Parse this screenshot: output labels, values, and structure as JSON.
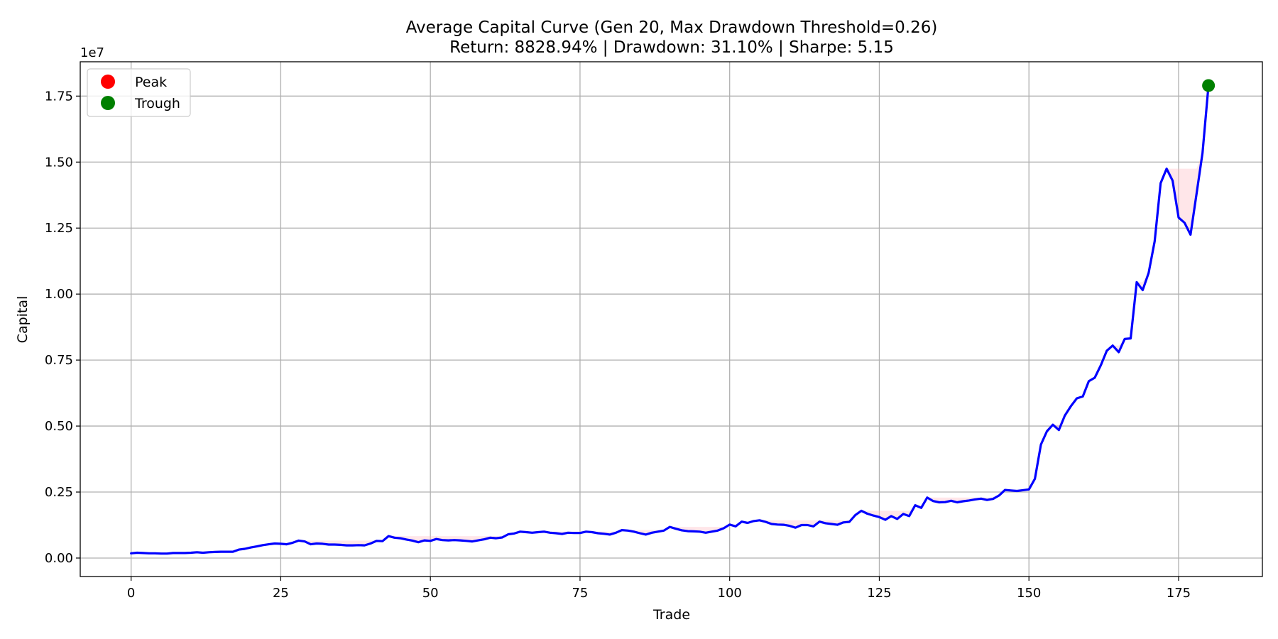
{
  "chart_data": {
    "type": "line",
    "title": "Average Capital Curve (Gen 20, Max Drawdown Threshold=0.26)",
    "subtitle": "Return: 8828.94% | Drawdown: 31.10% | Sharpe: 5.15",
    "xlabel": "Trade",
    "ylabel": "Capital",
    "y_offset_label": "1e7",
    "xlim": [
      -8.5,
      189
    ],
    "ylim": [
      -0.07,
      1.88
    ],
    "y_scale": 10000000,
    "x_ticks": [
      0,
      25,
      50,
      75,
      100,
      125,
      150,
      175
    ],
    "y_ticks": [
      0.0,
      0.25,
      0.5,
      0.75,
      1.0,
      1.25,
      1.5,
      1.75
    ],
    "y_tick_labels": [
      "0.00",
      "0.25",
      "0.50",
      "0.75",
      "1.00",
      "1.25",
      "1.50",
      "1.75"
    ],
    "grid": true,
    "legend_position": "upper-left",
    "series": [
      {
        "name": "",
        "color": "#0000ff",
        "x": [
          0,
          1,
          2,
          3,
          4,
          5,
          6,
          7,
          8,
          9,
          10,
          11,
          12,
          13,
          14,
          15,
          16,
          17,
          18,
          19,
          20,
          21,
          22,
          23,
          24,
          25,
          26,
          27,
          28,
          29,
          30,
          31,
          32,
          33,
          34,
          35,
          36,
          37,
          38,
          39,
          40,
          41,
          42,
          43,
          44,
          45,
          46,
          47,
          48,
          49,
          50,
          51,
          52,
          53,
          54,
          55,
          56,
          57,
          58,
          59,
          60,
          61,
          62,
          63,
          64,
          65,
          66,
          67,
          68,
          69,
          70,
          71,
          72,
          73,
          74,
          75,
          76,
          77,
          78,
          79,
          80,
          81,
          82,
          83,
          84,
          85,
          86,
          87,
          88,
          89,
          90,
          91,
          92,
          93,
          94,
          95,
          96,
          97,
          98,
          99,
          100,
          101,
          102,
          103,
          104,
          105,
          106,
          107,
          108,
          109,
          110,
          111,
          112,
          113,
          114,
          115,
          116,
          117,
          118,
          119,
          120,
          121,
          122,
          123,
          124,
          125,
          126,
          127,
          128,
          129,
          130,
          131,
          132,
          133,
          134,
          135,
          136,
          137,
          138,
          139,
          140,
          141,
          142,
          143,
          144,
          145,
          146,
          147,
          148,
          149,
          150,
          151,
          152,
          153,
          154,
          155,
          156,
          157,
          158,
          159,
          160,
          161,
          162,
          163,
          164,
          165,
          166,
          167,
          168,
          169,
          170,
          171,
          172,
          173,
          174,
          175,
          176,
          177,
          178,
          179,
          180
        ],
        "y": [
          0.018,
          0.02,
          0.019,
          0.018,
          0.018,
          0.017,
          0.017,
          0.019,
          0.019,
          0.019,
          0.02,
          0.022,
          0.02,
          0.022,
          0.023,
          0.024,
          0.024,
          0.024,
          0.032,
          0.035,
          0.04,
          0.044,
          0.049,
          0.052,
          0.055,
          0.054,
          0.052,
          0.058,
          0.066,
          0.063,
          0.052,
          0.055,
          0.054,
          0.051,
          0.051,
          0.05,
          0.048,
          0.048,
          0.049,
          0.048,
          0.055,
          0.065,
          0.064,
          0.083,
          0.077,
          0.075,
          0.07,
          0.066,
          0.06,
          0.067,
          0.065,
          0.072,
          0.068,
          0.067,
          0.068,
          0.067,
          0.065,
          0.063,
          0.067,
          0.071,
          0.077,
          0.075,
          0.078,
          0.09,
          0.093,
          0.1,
          0.098,
          0.096,
          0.098,
          0.1,
          0.096,
          0.094,
          0.091,
          0.096,
          0.095,
          0.095,
          0.1,
          0.098,
          0.094,
          0.092,
          0.089,
          0.096,
          0.106,
          0.104,
          0.1,
          0.094,
          0.089,
          0.096,
          0.1,
          0.104,
          0.118,
          0.111,
          0.105,
          0.102,
          0.101,
          0.1,
          0.096,
          0.1,
          0.104,
          0.113,
          0.127,
          0.12,
          0.138,
          0.133,
          0.14,
          0.143,
          0.137,
          0.129,
          0.127,
          0.126,
          0.122,
          0.115,
          0.125,
          0.125,
          0.12,
          0.138,
          0.132,
          0.129,
          0.126,
          0.135,
          0.137,
          0.163,
          0.179,
          0.168,
          0.161,
          0.155,
          0.145,
          0.159,
          0.148,
          0.167,
          0.159,
          0.2,
          0.19,
          0.229,
          0.216,
          0.211,
          0.212,
          0.217,
          0.211,
          0.215,
          0.218,
          0.222,
          0.225,
          0.22,
          0.224,
          0.237,
          0.258,
          0.256,
          0.254,
          0.257,
          0.26,
          0.3,
          0.43,
          0.48,
          0.505,
          0.485,
          0.54,
          0.575,
          0.605,
          0.612,
          0.67,
          0.683,
          0.73,
          0.785,
          0.805,
          0.78,
          0.83,
          0.832,
          1.045,
          1.015,
          1.08,
          1.2,
          1.42,
          1.475,
          1.43,
          1.29,
          1.27,
          1.225,
          1.38,
          1.535,
          1.79
        ]
      }
    ],
    "legend": [
      {
        "label": "Peak",
        "color": "#ff0000"
      },
      {
        "label": "Trough",
        "color": "#008000"
      }
    ],
    "markers": [
      {
        "series": "Trough",
        "x": 180,
        "y": 1.79,
        "color": "#008000"
      }
    ]
  }
}
